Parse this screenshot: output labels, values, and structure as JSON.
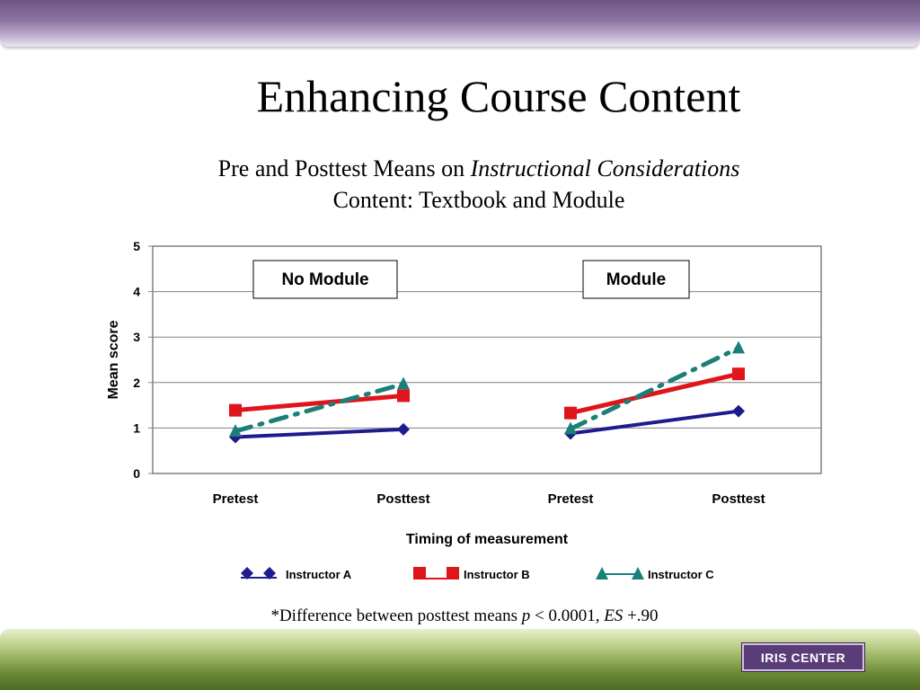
{
  "slide": {
    "title": "Enhancing Course Content",
    "subtitle_prefix": "Pre and Posttest Means on ",
    "subtitle_italic": "Instructional Considerations",
    "subtitle_line2": "Content: Textbook and Module",
    "footnote_prefix": "*Difference between posttest means ",
    "footnote_p": "p",
    "footnote_mid": " < 0.0001, ",
    "footnote_es": "ES",
    "footnote_suffix": " +.90",
    "badge_label": "IRIS CENTER"
  },
  "colors": {
    "instructor_a": "#1f1b8f",
    "instructor_b": "#e0141b",
    "instructor_c": "#1a7f78",
    "top_band": "#6e5485",
    "bottom_band": "#6f8e39"
  },
  "chart_data": {
    "type": "line",
    "xlabel": "Timing of measurement",
    "ylabel": "Mean score",
    "ylim": [
      0,
      5
    ],
    "yticks": [
      "0",
      "1",
      "2",
      "3",
      "4",
      "5"
    ],
    "categories": [
      "Pretest",
      "Posttest",
      "Pretest",
      "Posttest"
    ],
    "groups": [
      "No Module",
      "Module"
    ],
    "grid": true,
    "legend_position": "bottom",
    "series": [
      {
        "name": "Instructor A",
        "marker": "diamond",
        "values": [
          0.8,
          0.97,
          0.88,
          1.37
        ]
      },
      {
        "name": "Instructor B",
        "marker": "square",
        "values": [
          1.39,
          1.71,
          1.33,
          2.19
        ]
      },
      {
        "name": "Instructor C",
        "marker": "triangle",
        "values": [
          0.93,
          1.97,
          0.98,
          2.76
        ]
      }
    ]
  }
}
